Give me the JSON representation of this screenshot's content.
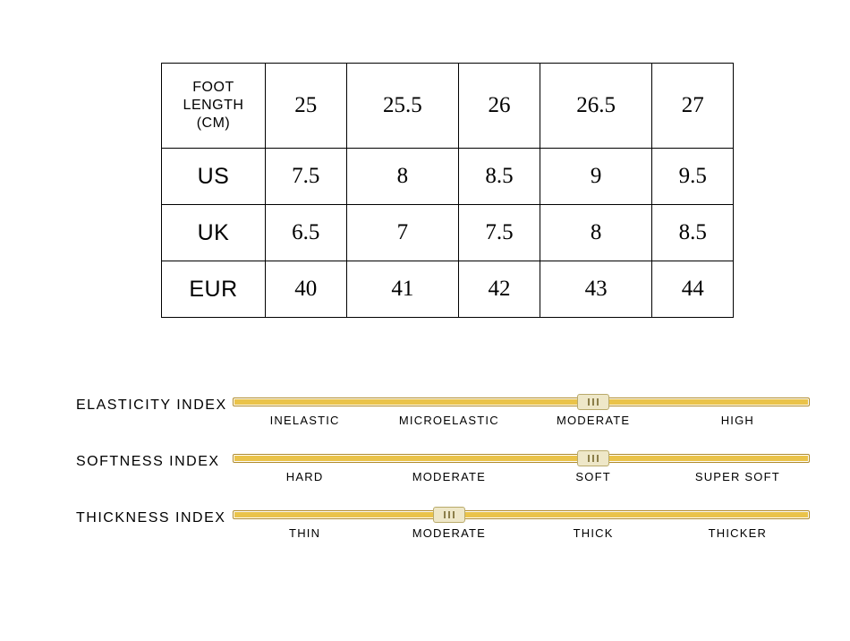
{
  "size_table": {
    "type": "table",
    "border_color": "#000000",
    "background_color": "#ffffff",
    "header_font": "Arial",
    "value_font": "Georgia",
    "header_fontsize": 16,
    "row_label_fontsize": 25,
    "value_fontsize": 25,
    "columns": 6,
    "corner_label_line1": "FOOT",
    "corner_label_line2": "LENGTH",
    "corner_label_line3": "(CM)",
    "header_values": [
      "25",
      "25.5",
      "26",
      "26.5",
      "27"
    ],
    "rows": [
      {
        "label": "US",
        "values": [
          "7.5",
          "8",
          "8.5",
          "9",
          "9.5"
        ]
      },
      {
        "label": "UK",
        "values": [
          "6.5",
          "7",
          "7.5",
          "8",
          "8.5"
        ]
      },
      {
        "label": "EUR",
        "values": [
          "40",
          "41",
          "42",
          "43",
          "44"
        ]
      }
    ]
  },
  "indexes": {
    "track_fill_color": "#eac34a",
    "track_border_color": "#b08a2a",
    "handle_bg_color": "#eee7c8",
    "handle_border_color": "#b9aa6a",
    "grip_color": "#8c7f4a",
    "label_fontsize": 16,
    "tick_fontsize": 13,
    "items": [
      {
        "label": "ELASTICITY INDEX",
        "ticks": [
          "INELASTIC",
          "MICROELASTIC",
          "MODERATE",
          "HIGH"
        ],
        "handle_percent": 62.5
      },
      {
        "label": "SOFTNESS INDEX",
        "ticks": [
          "HARD",
          "MODERATE",
          "SOFT",
          "SUPER SOFT"
        ],
        "handle_percent": 62.5
      },
      {
        "label": "THICKNESS INDEX",
        "ticks": [
          "THIN",
          "MODERATE",
          "THICK",
          "THICKER"
        ],
        "handle_percent": 37.5
      }
    ]
  }
}
